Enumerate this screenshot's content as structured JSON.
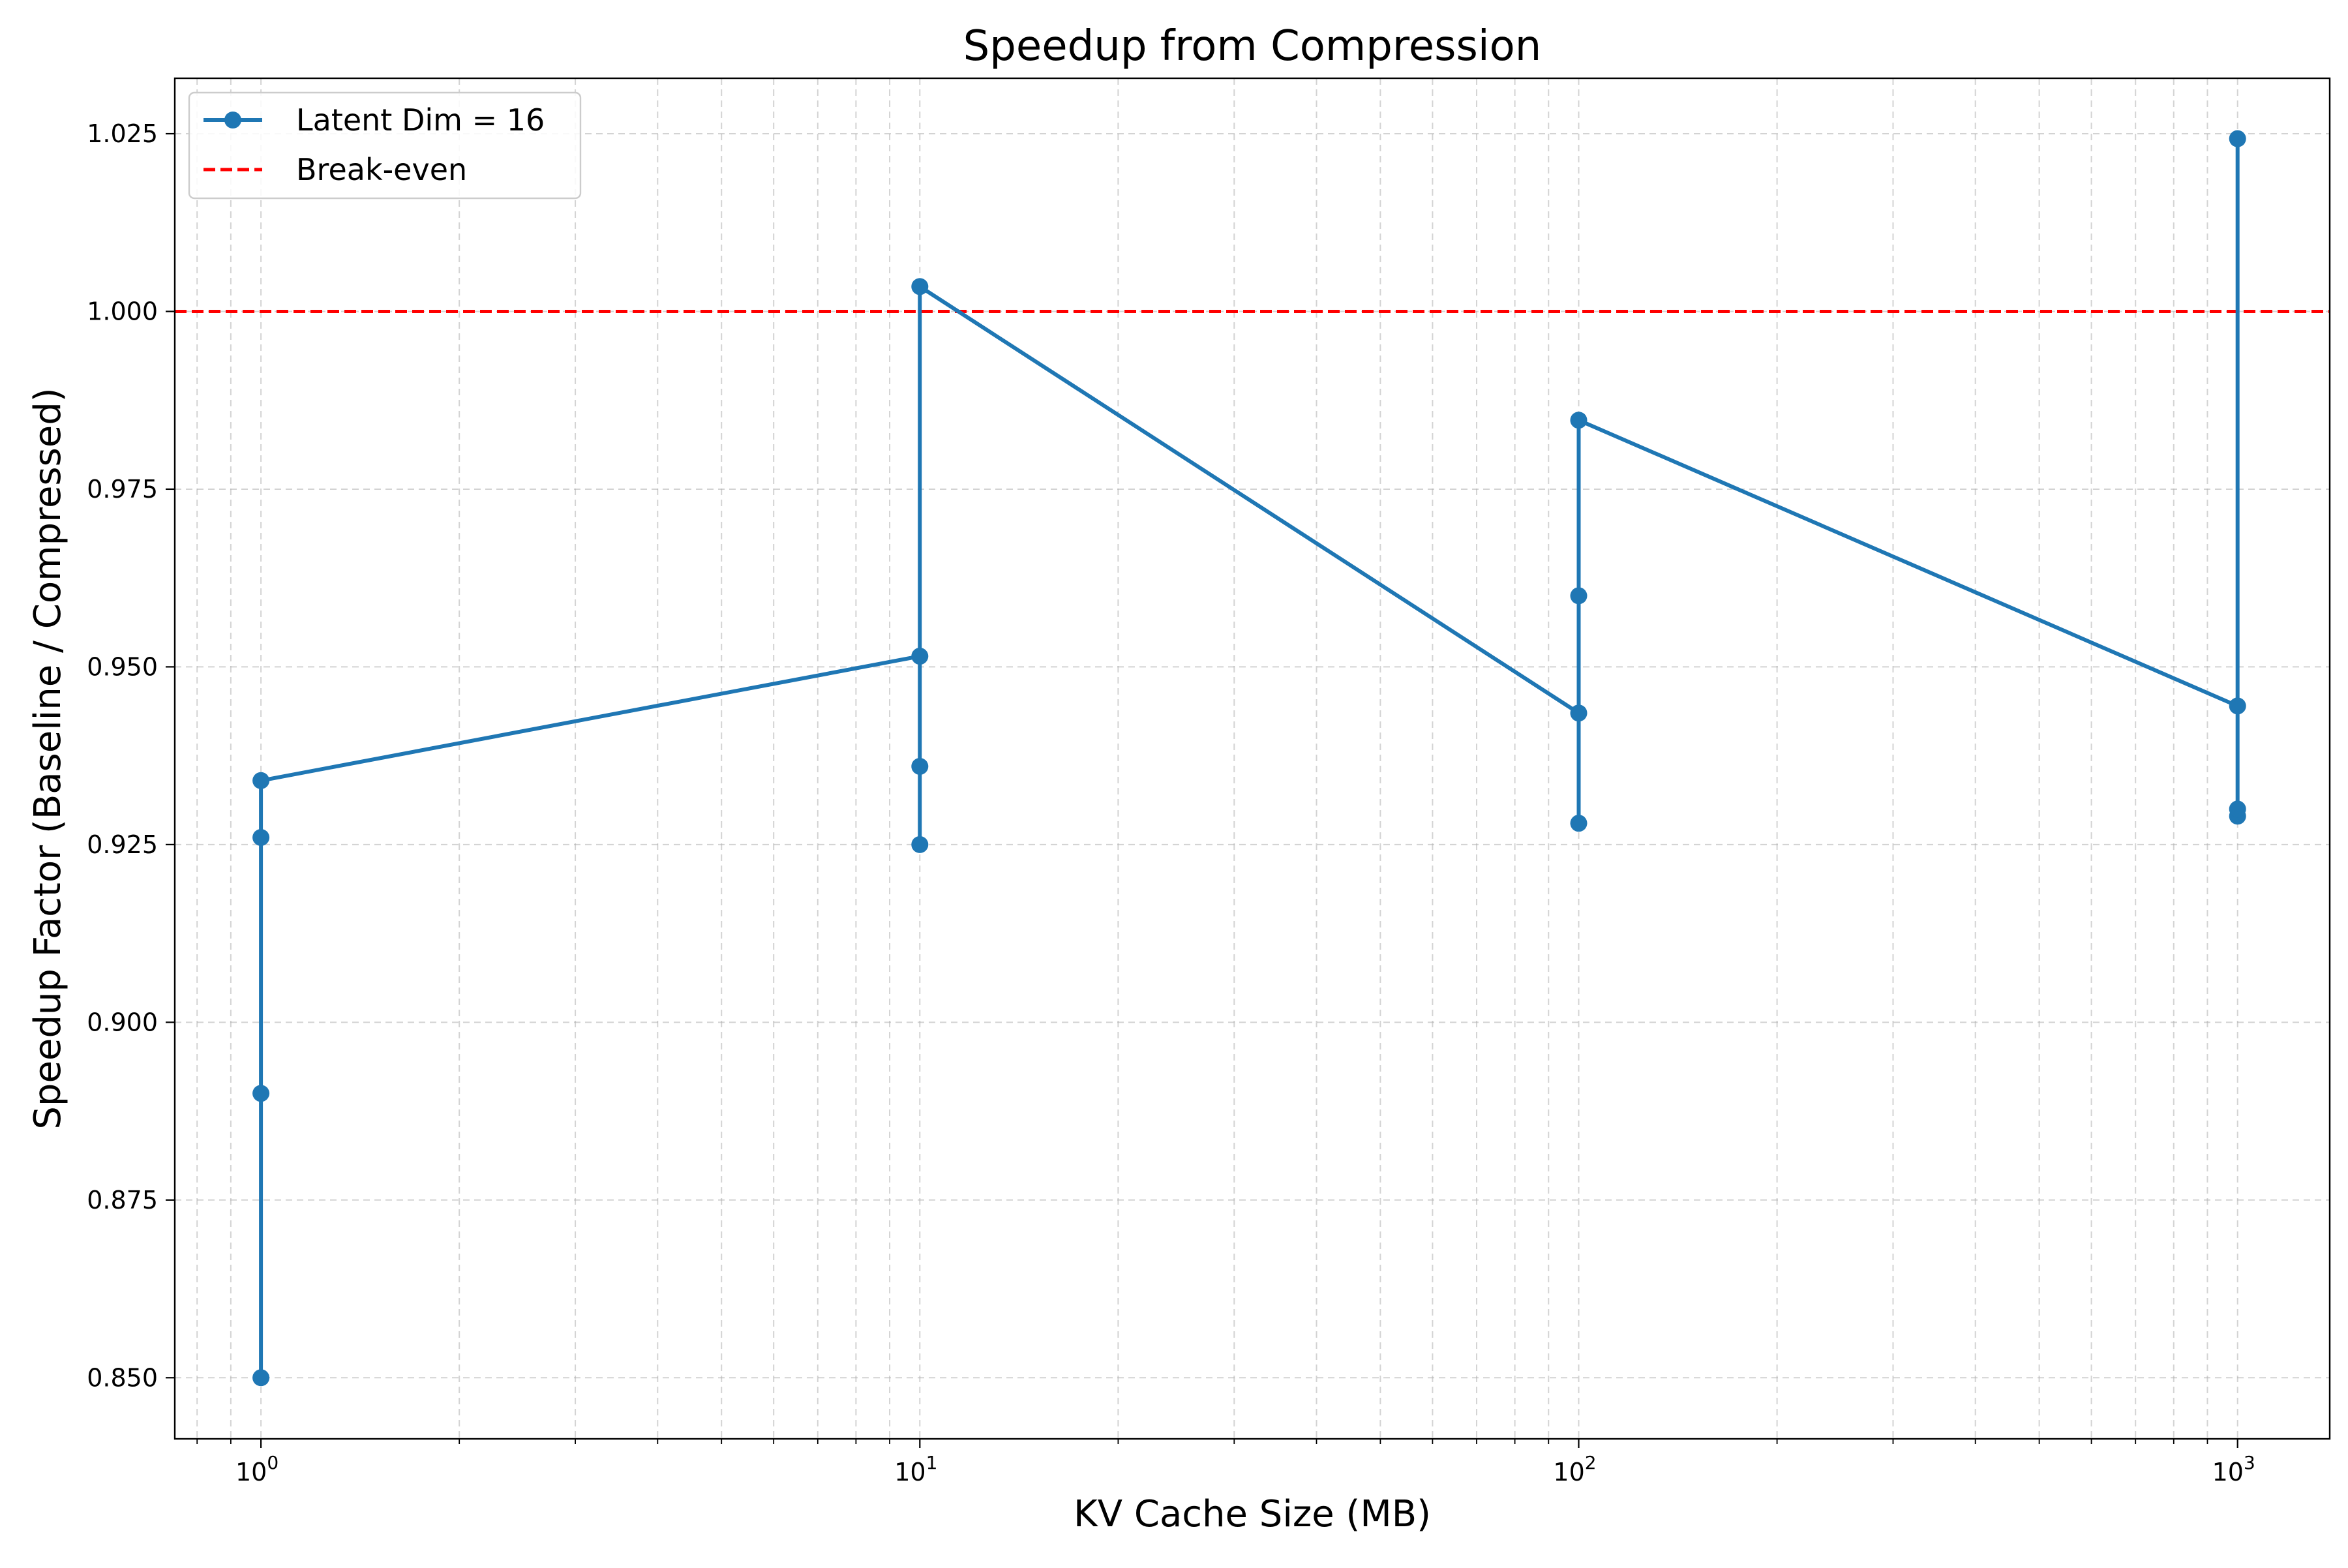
{
  "chart_data": {
    "type": "line",
    "title": "Speedup from Compression",
    "xlabel": "KV Cache Size (MB)",
    "ylabel": "Speedup Factor (Baseline / Compressed)",
    "xscale": "log",
    "xlim": [
      0.74,
      1380
    ],
    "ylim": [
      0.8414,
      1.0328
    ],
    "x_ticks": [
      {
        "value": 1,
        "base": "10",
        "exp": "0"
      },
      {
        "value": 10,
        "base": "10",
        "exp": "1"
      },
      {
        "value": 100,
        "base": "10",
        "exp": "2"
      },
      {
        "value": 1000,
        "base": "10",
        "exp": "3"
      }
    ],
    "y_ticks": [
      0.85,
      0.875,
      0.9,
      0.925,
      0.95,
      0.975,
      1.0,
      1.025
    ],
    "y_tick_labels": [
      "0.850",
      "0.875",
      "0.900",
      "0.925",
      "0.950",
      "0.975",
      "1.000",
      "1.025"
    ],
    "grid": true,
    "legend_position": "top-left",
    "series": [
      {
        "name": "Latent Dim = 16",
        "color": "#1f77b4",
        "style": "solid-with-markers",
        "points": [
          {
            "x": 1,
            "y": 0.85
          },
          {
            "x": 1,
            "y": 0.89
          },
          {
            "x": 1,
            "y": 0.926
          },
          {
            "x": 1,
            "y": 0.934
          },
          {
            "x": 10,
            "y": 0.9515
          },
          {
            "x": 10,
            "y": 0.936
          },
          {
            "x": 10,
            "y": 0.925
          },
          {
            "x": 10,
            "y": 1.0035
          },
          {
            "x": 100,
            "y": 0.9435
          },
          {
            "x": 100,
            "y": 0.928
          },
          {
            "x": 100,
            "y": 0.96
          },
          {
            "x": 100,
            "y": 0.9847
          },
          {
            "x": 1000,
            "y": 0.9445
          },
          {
            "x": 1000,
            "y": 0.929
          },
          {
            "x": 1000,
            "y": 0.93
          },
          {
            "x": 1000,
            "y": 1.0243
          }
        ]
      }
    ],
    "reference_lines": [
      {
        "name": "Break-even",
        "y": 1.0,
        "color": "#ff0000",
        "style": "dashed"
      }
    ]
  }
}
